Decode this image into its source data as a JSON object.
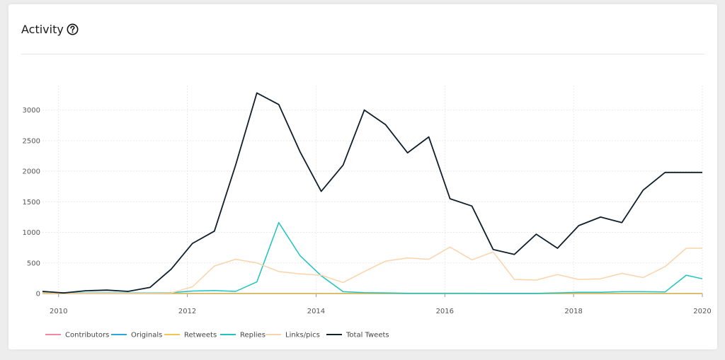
{
  "card": {
    "title": "Activity",
    "help_icon": "question-circle-icon"
  },
  "chart_data": {
    "type": "line",
    "title": "",
    "xlabel": "",
    "ylabel": "",
    "xlim": [
      2009.75,
      2020.0
    ],
    "ylim": [
      0,
      3400
    ],
    "x_ticks": [
      "2010",
      "2012",
      "2014",
      "2016",
      "2018",
      "2020"
    ],
    "y_ticks": [
      "0",
      "500",
      "1000",
      "1500",
      "2000",
      "2500",
      "3000"
    ],
    "grid": true,
    "legend_position": "bottom-left",
    "x": [
      2009.75,
      2010.08,
      2010.42,
      2010.75,
      2011.08,
      2011.42,
      2011.75,
      2012.08,
      2012.42,
      2012.75,
      2013.08,
      2013.42,
      2013.75,
      2014.08,
      2014.42,
      2014.75,
      2015.08,
      2015.42,
      2015.75,
      2016.08,
      2016.42,
      2016.75,
      2017.08,
      2017.42,
      2017.75,
      2018.08,
      2018.42,
      2018.75,
      2019.08,
      2019.42,
      2019.75,
      2020.0
    ],
    "series": [
      {
        "name": "Contributors",
        "color": "#f08a9c",
        "values": [
          1,
          1,
          1,
          1,
          1,
          1,
          1,
          1,
          1,
          1,
          1,
          1,
          1,
          1,
          1,
          1,
          1,
          1,
          1,
          1,
          1,
          1,
          1,
          1,
          1,
          1,
          1,
          1,
          1,
          1,
          1,
          1
        ]
      },
      {
        "name": "Originals",
        "color": "#2aa9e0",
        "values": [
          0,
          0,
          0,
          0,
          0,
          0,
          0,
          0,
          0,
          0,
          0,
          0,
          0,
          0,
          0,
          0,
          0,
          0,
          0,
          0,
          0,
          0,
          0,
          0,
          0,
          0,
          0,
          0,
          0,
          0,
          0,
          0
        ]
      },
      {
        "name": "Retweets",
        "color": "#f5c451",
        "values": [
          0,
          0,
          0,
          0,
          0,
          0,
          0,
          0,
          0,
          0,
          0,
          0,
          0,
          0,
          0,
          0,
          0,
          0,
          0,
          0,
          0,
          0,
          0,
          0,
          0,
          0,
          0,
          0,
          0,
          0,
          0,
          0
        ]
      },
      {
        "name": "Replies",
        "color": "#1fc3c0",
        "values": [
          20,
          10,
          10,
          10,
          10,
          10,
          15,
          40,
          50,
          35,
          190,
          1160,
          620,
          290,
          30,
          15,
          10,
          5,
          5,
          5,
          5,
          3,
          3,
          3,
          10,
          20,
          20,
          30,
          30,
          25,
          300,
          240
        ]
      },
      {
        "name": "Links/pics",
        "color": "#fbd3ab",
        "values": [
          10,
          5,
          5,
          5,
          5,
          5,
          10,
          110,
          450,
          560,
          500,
          360,
          320,
          300,
          180,
          360,
          530,
          580,
          560,
          760,
          550,
          680,
          230,
          220,
          310,
          230,
          240,
          330,
          260,
          440,
          740,
          740
        ]
      },
      {
        "name": "Total Tweets",
        "color": "#0f1f2b",
        "values": [
          35,
          10,
          45,
          55,
          35,
          100,
          400,
          820,
          1020,
          2100,
          3280,
          3090,
          2320,
          1670,
          2100,
          3000,
          2760,
          2300,
          2560,
          1550,
          1430,
          720,
          640,
          970,
          740,
          1110,
          1250,
          1160,
          1690,
          1980,
          1980,
          1980
        ]
      }
    ]
  }
}
